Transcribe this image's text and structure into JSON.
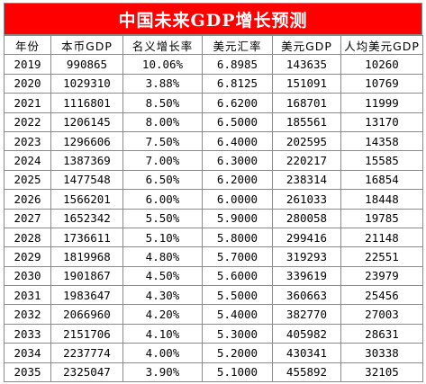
{
  "title": "中国未来GDP增长预测",
  "headers": [
    "年份",
    "本币GDP",
    "名义增长率",
    "美元汇率",
    "美元GDP",
    "人均美元GDP"
  ],
  "rows": [
    [
      "2019",
      "990865",
      "10.06%",
      "6.8985",
      "143635",
      "10260"
    ],
    [
      "2020",
      "1029310",
      "3.88%",
      "6.8125",
      "151091",
      "10769"
    ],
    [
      "2021",
      "1116801",
      "8.50%",
      "6.6200",
      "168701",
      "11999"
    ],
    [
      "2022",
      "1206145",
      "8.00%",
      "6.5000",
      "185561",
      "13170"
    ],
    [
      "2023",
      "1296606",
      "7.50%",
      "6.4000",
      "202595",
      "14358"
    ],
    [
      "2024",
      "1387369",
      "7.00%",
      "6.3000",
      "220217",
      "15585"
    ],
    [
      "2025",
      "1477548",
      "6.50%",
      "6.2000",
      "238314",
      "16854"
    ],
    [
      "2026",
      "1566201",
      "6.00%",
      "6.0000",
      "261033",
      "18448"
    ],
    [
      "2027",
      "1652342",
      "5.50%",
      "5.9000",
      "280058",
      "19785"
    ],
    [
      "2028",
      "1736611",
      "5.10%",
      "5.8000",
      "299416",
      "21148"
    ],
    [
      "2029",
      "1819968",
      "4.80%",
      "5.7000",
      "319293",
      "22551"
    ],
    [
      "2030",
      "1901867",
      "4.50%",
      "5.6000",
      "339619",
      "23979"
    ],
    [
      "2031",
      "1983647",
      "4.30%",
      "5.5000",
      "360663",
      "25456"
    ],
    [
      "2032",
      "2066960",
      "4.20%",
      "5.4000",
      "382770",
      "27003"
    ],
    [
      "2033",
      "2151706",
      "4.10%",
      "5.3000",
      "405982",
      "28631"
    ],
    [
      "2034",
      "2237774",
      "4.00%",
      "5.2000",
      "430341",
      "30338"
    ],
    [
      "2035",
      "2325047",
      "3.90%",
      "5.1000",
      "455892",
      "32105"
    ]
  ]
}
